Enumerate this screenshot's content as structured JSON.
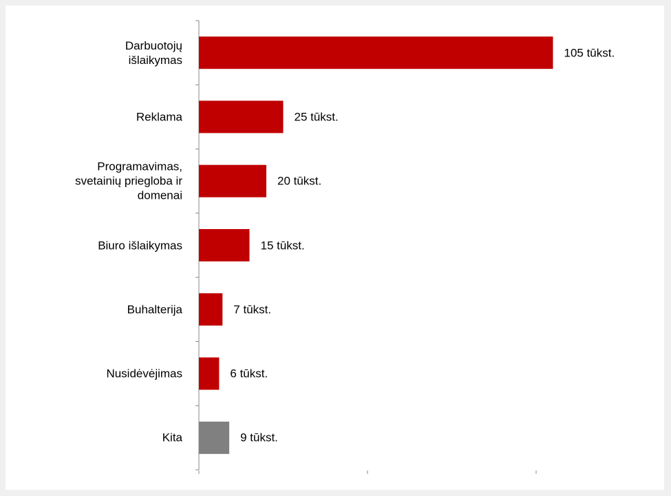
{
  "chart_data": {
    "type": "bar",
    "orientation": "horizontal",
    "categories": [
      "Darbuotojų\nišlaikymas",
      "Reklama",
      "Programavimas,\nsvetainių priegloba ir\ndomenai",
      "Biuro išlaikymas",
      "Buhalterija",
      "Nusidėvėjimas",
      "Kita"
    ],
    "values": [
      105,
      25,
      20,
      15,
      7,
      6,
      9
    ],
    "value_labels": [
      "105 tūkst.",
      "25 tūkst.",
      "20 tūkst.",
      "15 tūkst.",
      "7 tūkst.",
      "6 tūkst.",
      "9 tūkst."
    ],
    "colors": [
      "#c00000",
      "#c00000",
      "#c00000",
      "#c00000",
      "#c00000",
      "#c00000",
      "#808080"
    ],
    "xlim": [
      0,
      140
    ],
    "xticks": [
      0,
      50,
      100
    ],
    "grid": false
  }
}
